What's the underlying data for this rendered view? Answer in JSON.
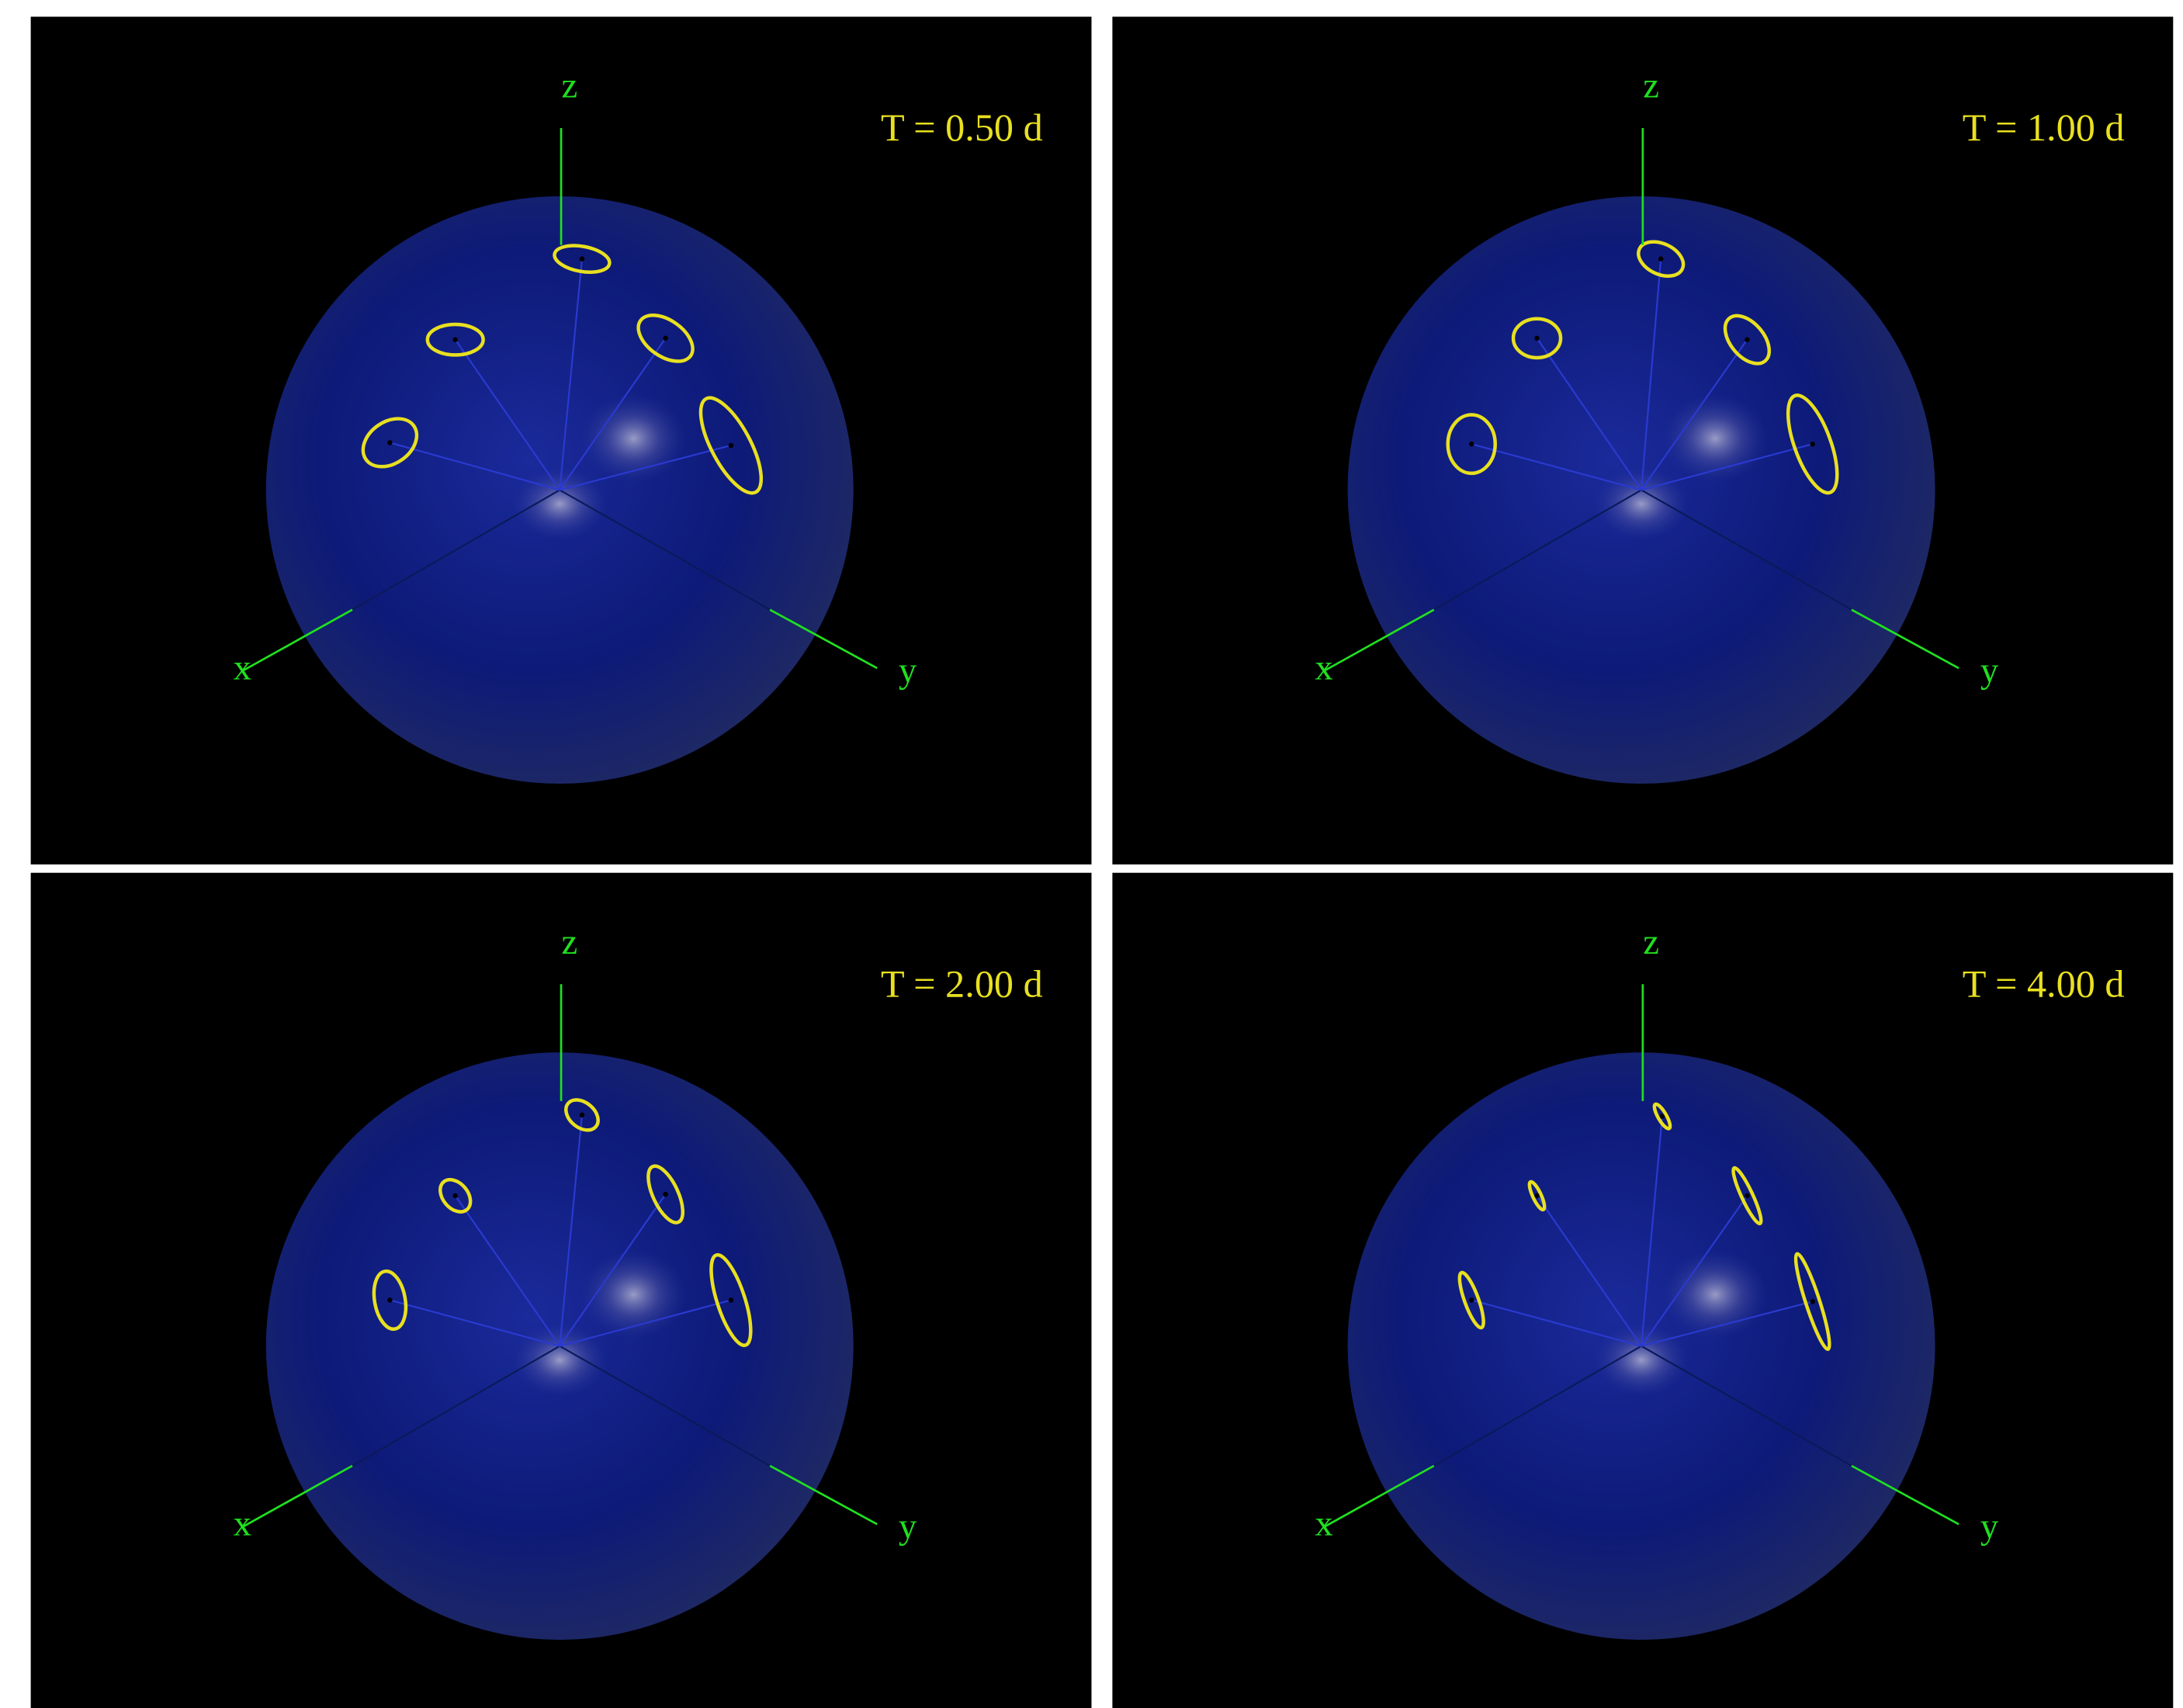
{
  "panels": [
    {
      "label": "T = 0.50 d",
      "axes": {
        "x": "x",
        "y": "y",
        "z": "z"
      }
    },
    {
      "label": "T = 1.00 d",
      "axes": {
        "x": "x",
        "y": "y",
        "z": "z"
      }
    },
    {
      "label": "T = 2.00 d",
      "axes": {
        "x": "x",
        "y": "y",
        "z": "z"
      }
    },
    {
      "label": "T = 4.00 d",
      "axes": {
        "x": "x",
        "y": "y",
        "z": "z"
      }
    }
  ]
}
